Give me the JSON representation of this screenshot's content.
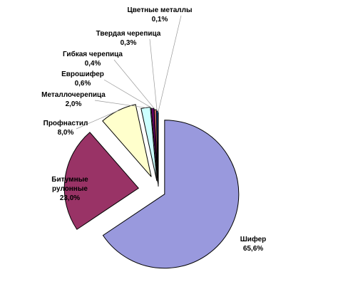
{
  "chart_data": {
    "type": "pie",
    "categories": [
      "Шифер",
      "Битумные рулонные",
      "Профнастил",
      "Металлочерепица",
      "Еврошифер",
      "Гибкая черепица",
      "Твердая черепица",
      "Цветные металлы"
    ],
    "values": [
      65.6,
      23.0,
      8.0,
      2.0,
      0.6,
      0.4,
      0.3,
      0.1
    ],
    "value_labels": [
      "65,6%",
      "23,0%",
      "8,0%",
      "2,0%",
      "0,6%",
      "0,4%",
      "0,3%",
      "0,1%"
    ],
    "colors": [
      "#9999dd",
      "#993366",
      "#ffffcc",
      "#ccffff",
      "#660066",
      "#ff8080",
      "#0066cc",
      "#ccccff"
    ]
  }
}
